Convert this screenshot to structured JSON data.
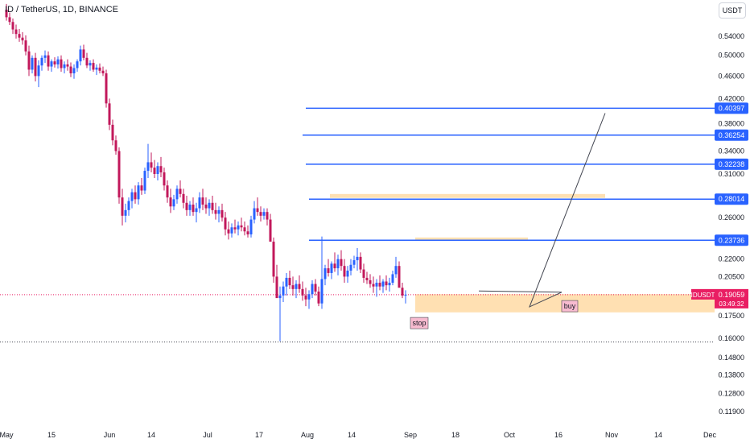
{
  "header": {
    "title": "ID / TetherUS, 1D, BINANCE"
  },
  "currency_label": "USDT",
  "colors": {
    "up": "#2962ff",
    "down": "#c2185b",
    "level": "#2962ff",
    "zone": "#ffe0b2",
    "price": "#e91e63"
  },
  "chart_data": {
    "type": "candlestick",
    "x_ticks": [
      "May",
      "15",
      "Jun",
      "14",
      "Jul",
      "17",
      "Aug",
      "14",
      "Sep",
      "18",
      "Oct",
      "16",
      "Nov",
      "14",
      "Dec"
    ],
    "y_ticks": [
      "0.54000",
      "0.50000",
      "0.46000",
      "0.42000",
      "0.38000",
      "0.34000",
      "0.31000",
      "0.26000",
      "0.22000",
      "0.20500",
      "0.17500",
      "0.16000",
      "0.14800",
      "0.13800",
      "0.12800",
      "0.11900"
    ],
    "price_levels": [
      "0.40397",
      "0.36254",
      "0.32238",
      "0.28014",
      "0.23736"
    ],
    "current_price": {
      "symbol": "IDUSDT",
      "price": "0.19059",
      "countdown": "03:49:32"
    },
    "annotations": {
      "stop": "stop",
      "buy": "buy"
    },
    "candles": [
      [
        0.601,
        0.615,
        0.575,
        0.583
      ],
      [
        0.583,
        0.594,
        0.565,
        0.572
      ],
      [
        0.572,
        0.58,
        0.545,
        0.555
      ],
      [
        0.555,
        0.566,
        0.535,
        0.545
      ],
      [
        0.545,
        0.556,
        0.528,
        0.537
      ],
      [
        0.537,
        0.549,
        0.522,
        0.531
      ],
      [
        0.531,
        0.542,
        0.5,
        0.508
      ],
      [
        0.508,
        0.52,
        0.46,
        0.472
      ],
      [
        0.472,
        0.5,
        0.465,
        0.495
      ],
      [
        0.495,
        0.505,
        0.45,
        0.46
      ],
      [
        0.46,
        0.49,
        0.44,
        0.48
      ],
      [
        0.48,
        0.5,
        0.47,
        0.495
      ],
      [
        0.495,
        0.51,
        0.485,
        0.5
      ],
      [
        0.5,
        0.508,
        0.47,
        0.478
      ],
      [
        0.478,
        0.492,
        0.468,
        0.488
      ],
      [
        0.488,
        0.496,
        0.476,
        0.482
      ],
      [
        0.482,
        0.498,
        0.474,
        0.492
      ],
      [
        0.492,
        0.5,
        0.468,
        0.475
      ],
      [
        0.475,
        0.488,
        0.465,
        0.482
      ],
      [
        0.482,
        0.492,
        0.47,
        0.478
      ],
      [
        0.478,
        0.486,
        0.458,
        0.465
      ],
      [
        0.465,
        0.482,
        0.455,
        0.475
      ],
      [
        0.475,
        0.492,
        0.468,
        0.488
      ],
      [
        0.488,
        0.52,
        0.48,
        0.512
      ],
      [
        0.512,
        0.522,
        0.49,
        0.495
      ],
      [
        0.495,
        0.505,
        0.475,
        0.48
      ],
      [
        0.48,
        0.49,
        0.47,
        0.485
      ],
      [
        0.485,
        0.492,
        0.468,
        0.472
      ],
      [
        0.472,
        0.482,
        0.462,
        0.476
      ],
      [
        0.476,
        0.484,
        0.465,
        0.47
      ],
      [
        0.47,
        0.478,
        0.46,
        0.465
      ],
      [
        0.465,
        0.472,
        0.405,
        0.412
      ],
      [
        0.412,
        0.42,
        0.37,
        0.378
      ],
      [
        0.378,
        0.386,
        0.348,
        0.355
      ],
      [
        0.355,
        0.362,
        0.335,
        0.34
      ],
      [
        0.34,
        0.345,
        0.275,
        0.282
      ],
      [
        0.282,
        0.292,
        0.252,
        0.262
      ],
      [
        0.262,
        0.275,
        0.255,
        0.268
      ],
      [
        0.268,
        0.282,
        0.262,
        0.278
      ],
      [
        0.278,
        0.292,
        0.27,
        0.288
      ],
      [
        0.288,
        0.296,
        0.275,
        0.28
      ],
      [
        0.28,
        0.3,
        0.274,
        0.296
      ],
      [
        0.296,
        0.305,
        0.285,
        0.29
      ],
      [
        0.29,
        0.318,
        0.286,
        0.314
      ],
      [
        0.314,
        0.35,
        0.305,
        0.325
      ],
      [
        0.325,
        0.338,
        0.312,
        0.318
      ],
      [
        0.318,
        0.328,
        0.305,
        0.31
      ],
      [
        0.31,
        0.325,
        0.302,
        0.32
      ],
      [
        0.32,
        0.332,
        0.306,
        0.312
      ],
      [
        0.312,
        0.318,
        0.29,
        0.296
      ],
      [
        0.296,
        0.302,
        0.276,
        0.282
      ],
      [
        0.282,
        0.292,
        0.265,
        0.272
      ],
      [
        0.272,
        0.285,
        0.268,
        0.28
      ],
      [
        0.28,
        0.296,
        0.275,
        0.292
      ],
      [
        0.292,
        0.302,
        0.282,
        0.286
      ],
      [
        0.286,
        0.292,
        0.27,
        0.276
      ],
      [
        0.276,
        0.284,
        0.262,
        0.268
      ],
      [
        0.268,
        0.278,
        0.262,
        0.274
      ],
      [
        0.274,
        0.282,
        0.262,
        0.266
      ],
      [
        0.266,
        0.276,
        0.255,
        0.27
      ],
      [
        0.27,
        0.288,
        0.265,
        0.282
      ],
      [
        0.282,
        0.292,
        0.268,
        0.274
      ],
      [
        0.274,
        0.282,
        0.264,
        0.27
      ],
      [
        0.27,
        0.28,
        0.262,
        0.276
      ],
      [
        0.276,
        0.284,
        0.264,
        0.268
      ],
      [
        0.268,
        0.276,
        0.258,
        0.264
      ],
      [
        0.264,
        0.272,
        0.255,
        0.268
      ],
      [
        0.268,
        0.275,
        0.256,
        0.26
      ],
      [
        0.26,
        0.266,
        0.242,
        0.248
      ],
      [
        0.248,
        0.256,
        0.238,
        0.244
      ],
      [
        0.244,
        0.254,
        0.24,
        0.25
      ],
      [
        0.25,
        0.258,
        0.244,
        0.248
      ],
      [
        0.248,
        0.256,
        0.242,
        0.252
      ],
      [
        0.252,
        0.26,
        0.246,
        0.25
      ],
      [
        0.25,
        0.256,
        0.242,
        0.246
      ],
      [
        0.246,
        0.252,
        0.24,
        0.243
      ],
      [
        0.243,
        0.262,
        0.24,
        0.258
      ],
      [
        0.258,
        0.278,
        0.254,
        0.27
      ],
      [
        0.27,
        0.282,
        0.262,
        0.266
      ],
      [
        0.266,
        0.272,
        0.256,
        0.262
      ],
      [
        0.262,
        0.27,
        0.258,
        0.266
      ],
      [
        0.266,
        0.27,
        0.252,
        0.258
      ],
      [
        0.258,
        0.264,
        0.24,
        0.236
      ],
      [
        0.236,
        0.24,
        0.2,
        0.205
      ],
      [
        0.205,
        0.215,
        0.19,
        0.188
      ],
      [
        0.188,
        0.197,
        0.158,
        0.19
      ],
      [
        0.19,
        0.201,
        0.185,
        0.197
      ],
      [
        0.197,
        0.208,
        0.19,
        0.204
      ],
      [
        0.204,
        0.21,
        0.195,
        0.198
      ],
      [
        0.198,
        0.205,
        0.19,
        0.195
      ],
      [
        0.195,
        0.202,
        0.188,
        0.199
      ],
      [
        0.199,
        0.206,
        0.192,
        0.195
      ],
      [
        0.195,
        0.201,
        0.186,
        0.19
      ],
      [
        0.19,
        0.196,
        0.182,
        0.187
      ],
      [
        0.187,
        0.194,
        0.18,
        0.191
      ],
      [
        0.191,
        0.202,
        0.188,
        0.199
      ],
      [
        0.199,
        0.203,
        0.19,
        0.193
      ],
      [
        0.193,
        0.197,
        0.182,
        0.184
      ],
      [
        0.184,
        0.241,
        0.18,
        0.203
      ],
      [
        0.203,
        0.215,
        0.198,
        0.212
      ],
      [
        0.212,
        0.22,
        0.205,
        0.208
      ],
      [
        0.208,
        0.218,
        0.203,
        0.216
      ],
      [
        0.216,
        0.226,
        0.209,
        0.212
      ],
      [
        0.212,
        0.224,
        0.206,
        0.22
      ],
      [
        0.22,
        0.228,
        0.21,
        0.214
      ],
      [
        0.214,
        0.22,
        0.2,
        0.205
      ],
      [
        0.205,
        0.214,
        0.2,
        0.21
      ],
      [
        0.21,
        0.22,
        0.206,
        0.215
      ],
      [
        0.215,
        0.223,
        0.212,
        0.219
      ],
      [
        0.219,
        0.23,
        0.21,
        0.222
      ],
      [
        0.222,
        0.226,
        0.208,
        0.211
      ],
      [
        0.211,
        0.216,
        0.2,
        0.204
      ],
      [
        0.204,
        0.209,
        0.199,
        0.202
      ],
      [
        0.202,
        0.207,
        0.196,
        0.199
      ],
      [
        0.199,
        0.205,
        0.192,
        0.197
      ],
      [
        0.197,
        0.203,
        0.189,
        0.2
      ],
      [
        0.2,
        0.206,
        0.194,
        0.197
      ],
      [
        0.197,
        0.203,
        0.192,
        0.201
      ],
      [
        0.201,
        0.206,
        0.194,
        0.198
      ],
      [
        0.198,
        0.204,
        0.193,
        0.2
      ],
      [
        0.2,
        0.21,
        0.198,
        0.207
      ],
      [
        0.207,
        0.222,
        0.204,
        0.214
      ],
      [
        0.214,
        0.218,
        0.2,
        0.196
      ],
      [
        0.196,
        0.2,
        0.188,
        0.19
      ],
      [
        0.19,
        0.194,
        0.184,
        0.19059
      ]
    ]
  }
}
